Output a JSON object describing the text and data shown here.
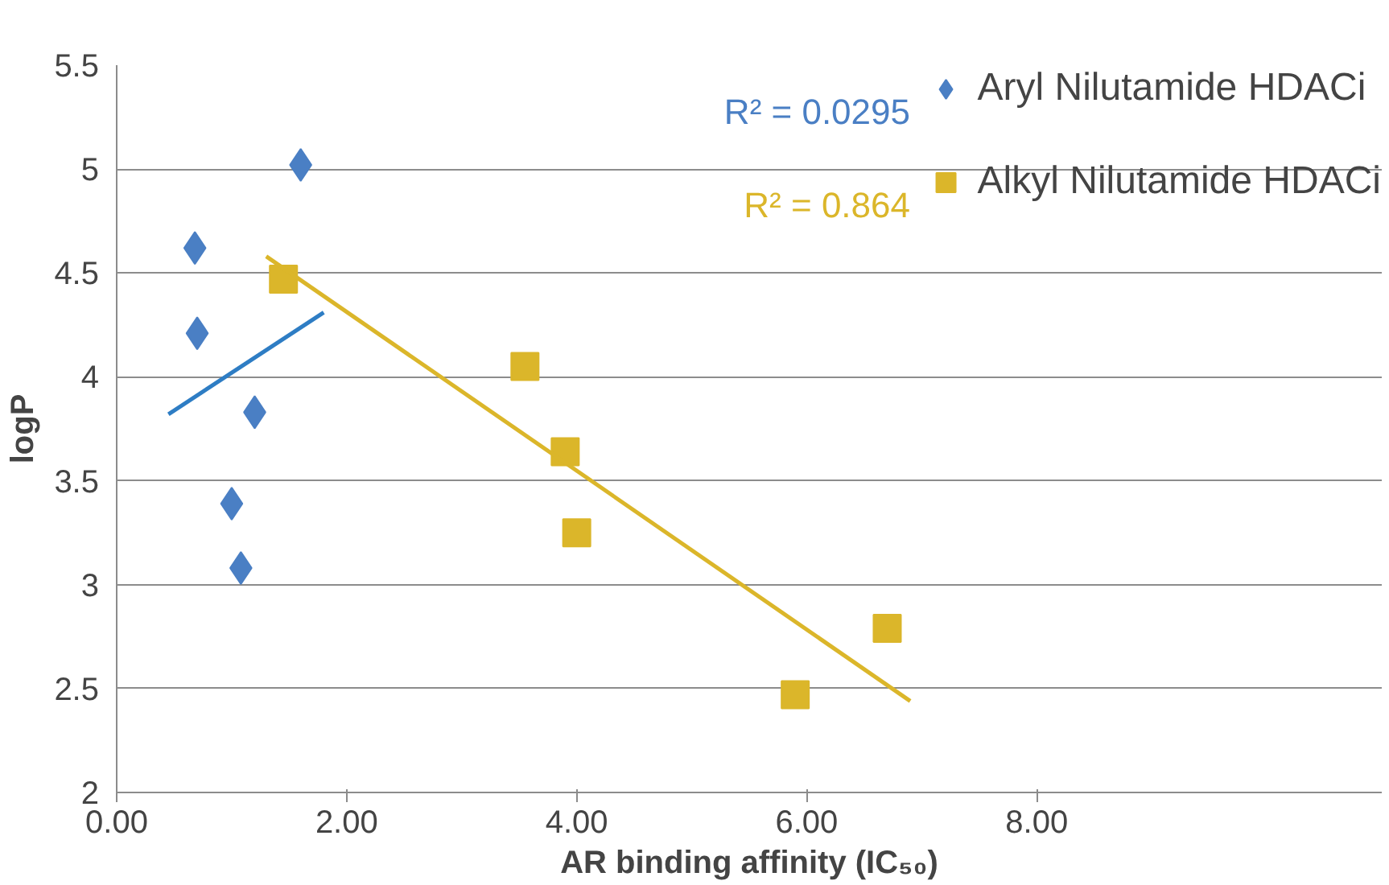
{
  "chart_data": {
    "type": "scatter",
    "xlabel": "AR binding affinity (IC₅₀)",
    "ylabel": "logP",
    "xlim": [
      0,
      11
    ],
    "xticks": [
      {
        "value": 0,
        "label": "0.00"
      },
      {
        "value": 2,
        "label": "2.00"
      },
      {
        "value": 4,
        "label": "4.00"
      },
      {
        "value": 6,
        "label": "6.00"
      },
      {
        "value": 8,
        "label": "8.00"
      }
    ],
    "ylim": [
      2,
      5.5
    ],
    "yticks": [
      2,
      2.5,
      3,
      3.5,
      4,
      4.5,
      5,
      5.5
    ],
    "grid": "y",
    "legend": "top right",
    "series": [
      {
        "name": "Aryl Nilutamide HDACi",
        "color": "#4a7fc4",
        "marker": "diamond",
        "x": [
          0.68,
          0.7,
          1.6,
          1.2,
          1.0,
          1.08
        ],
        "values": [
          4.62,
          4.21,
          5.02,
          3.83,
          3.39,
          3.08
        ]
      },
      {
        "name": "Alkyl Nilutamide HDACi",
        "color": "#dbb62a",
        "marker": "square",
        "x": [
          1.45,
          3.55,
          3.9,
          4.0,
          5.9,
          6.7
        ],
        "values": [
          4.47,
          4.05,
          3.64,
          3.25,
          2.47,
          2.79
        ]
      },
      {
        "type": "line",
        "color": "#2e7dc4",
        "x": [
          0.45,
          1.8
        ],
        "values": [
          3.82,
          4.31
        ]
      },
      {
        "type": "line",
        "color": "#dbb62a",
        "x": [
          1.3,
          6.9
        ],
        "values": [
          4.58,
          2.44
        ]
      }
    ],
    "annotations": [
      "R² = 0.0295",
      "R² = 0.864"
    ]
  }
}
